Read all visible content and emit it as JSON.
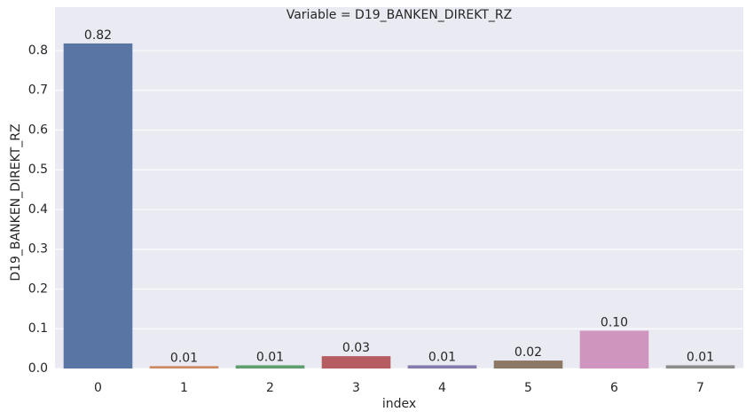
{
  "chart_data": {
    "type": "bar",
    "title": "Variable = D19_BANKEN_DIREKT_RZ",
    "x_label": "index",
    "y_label": "D19_BANKEN_DIREKT_RZ",
    "categories": [
      "0",
      "1",
      "2",
      "3",
      "4",
      "5",
      "6",
      "7"
    ],
    "values": [
      0.818,
      0.006,
      0.008,
      0.031,
      0.008,
      0.02,
      0.095,
      0.008
    ],
    "value_labels": [
      "0.82",
      "0.01",
      "0.01",
      "0.03",
      "0.01",
      "0.02",
      "0.10",
      "0.01"
    ],
    "colors": [
      "#5975a4",
      "#cc8963",
      "#5f9e6e",
      "#b55d60",
      "#857aab",
      "#8d7866",
      "#d095bf",
      "#8c8c8c"
    ],
    "ylim": [
      0,
      0.905
    ],
    "yticks": [
      {
        "value": 0,
        "label": "0.0"
      },
      {
        "value": 0.1,
        "label": "0.1"
      },
      {
        "value": 0.2,
        "label": "0.2"
      },
      {
        "value": 0.3,
        "label": "0.3"
      },
      {
        "value": 0.4,
        "label": "0.4"
      },
      {
        "value": 0.5,
        "label": "0.5"
      },
      {
        "value": 0.6,
        "label": "0.6"
      },
      {
        "value": 0.7,
        "label": "0.7"
      },
      {
        "value": 0.8,
        "label": "0.8"
      }
    ],
    "grid": true
  }
}
